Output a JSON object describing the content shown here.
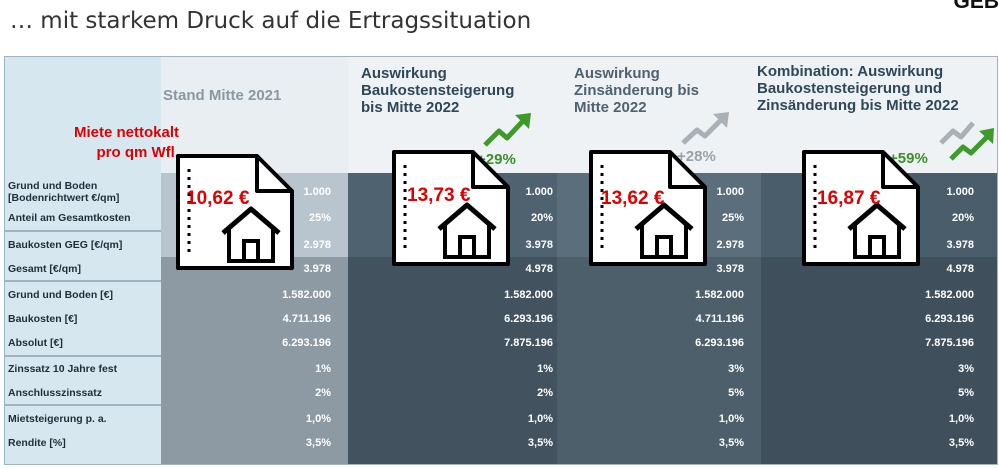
{
  "slide": {
    "title": "… mit starkem Druck auf die Ertragssituation",
    "logo_fragment": "GEB"
  },
  "table": {
    "miete_label_line1": "Miete nettokalt",
    "miete_label_line2": "pro qm Wfl.",
    "columns": [
      {
        "header_lines": [
          "Stand Mitte 2021"
        ],
        "rent": "10,62 €",
        "change": "",
        "arrow": "none"
      },
      {
        "header_lines": [
          "Auswirkung",
          "Baukostensteigerung",
          "bis Mitte 2022"
        ],
        "rent": "13,73 €",
        "change": "+29%",
        "arrow": "green"
      },
      {
        "header_lines": [
          "Auswirkung",
          "Zinsänderung bis",
          "Mitte 2022"
        ],
        "rent": "13,62 €",
        "change": "+28%",
        "arrow": "grey"
      },
      {
        "header_lines": [
          "Kombination: Auswirkung",
          "Baukostensteigerung und",
          "Zinsänderung bis Mitte 2022"
        ],
        "rent": "16,87 €",
        "change": "+59%",
        "arrow": "green+grey"
      }
    ],
    "rows": [
      {
        "label": [
          "Grund und Boden",
          "[Bodenrichtwert €/qm]"
        ],
        "values": [
          "1.000",
          "1.000",
          "1.000",
          "1.000"
        ]
      },
      {
        "label": [
          "Anteil am Gesamtkosten"
        ],
        "values": [
          "25%",
          "20%",
          "25%",
          "20%"
        ]
      },
      {
        "label": [
          "Baukosten GEG [€/qm]"
        ],
        "values": [
          "2.978",
          "3.978",
          "2.978",
          "3.978"
        ]
      },
      {
        "label": [
          "Gesamt [€/qm]"
        ],
        "values": [
          "3.978",
          "4.978",
          "3.978",
          "4.978"
        ]
      },
      {
        "label": [
          "Grund und Boden [€]"
        ],
        "values": [
          "1.582.000",
          "1.582.000",
          "1.582.000",
          "1.582.000"
        ]
      },
      {
        "label": [
          "Baukosten [€]"
        ],
        "values": [
          "4.711.196",
          "6.293.196",
          "4.711.196",
          "6.293.196"
        ]
      },
      {
        "label": [
          "Absolut [€]"
        ],
        "values": [
          "6.293.196",
          "7.875.196",
          "6.293.196",
          "7.875.196"
        ]
      },
      {
        "label": [
          "Zinssatz 10 Jahre fest"
        ],
        "values": [
          "1%",
          "1%",
          "3%",
          "3%"
        ]
      },
      {
        "label": [
          "Anschlusszinssatz"
        ],
        "values": [
          "2%",
          "2%",
          "5%",
          "5%"
        ]
      },
      {
        "label": [
          "Mietsteigerung p. a."
        ],
        "values": [
          "1,0%",
          "1,0%",
          "1,0%",
          "1,0%"
        ]
      },
      {
        "label": [
          "Rendite [%]"
        ],
        "values": [
          "3,5%",
          "3,5%",
          "3,5%",
          "3,5%"
        ]
      }
    ]
  },
  "colors": {
    "rent_red": "#e00000",
    "increase_green": "#3d8f2a",
    "increase_grey": "#9aa3aa",
    "label_column": "#d6e7f0",
    "dark_cell": "#42535f"
  },
  "icons": [
    "document-icon",
    "house-icon",
    "trend-up-arrow-icon"
  ]
}
